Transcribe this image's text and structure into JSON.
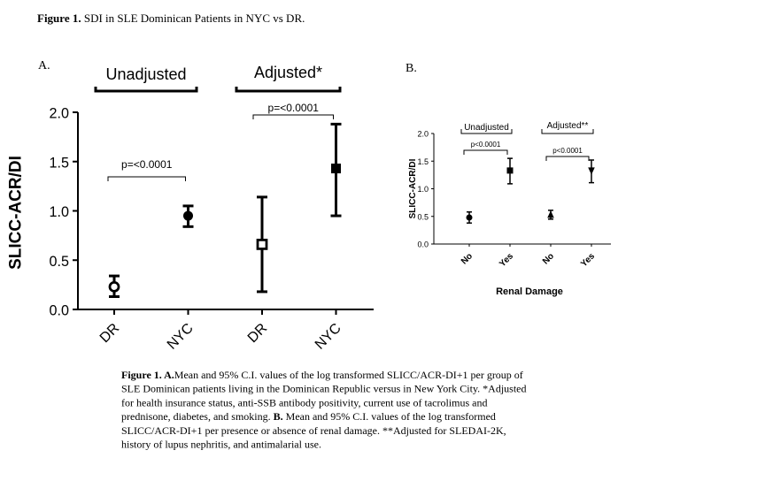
{
  "figure_title": [
    {
      "text": "Figure 1.",
      "bold": true
    },
    {
      "text": " SDI in SLE Dominican Patients in NYC vs DR.",
      "bold": false
    }
  ],
  "chart_data": [
    {
      "type": "errorbar",
      "panel_label": "A.",
      "ylabel": "SLICC-ACR/DI",
      "categories": [
        "DR",
        "NYC",
        "DR",
        "NYC"
      ],
      "values": [
        0.23,
        0.95,
        0.66,
        1.43
      ],
      "ci_low": [
        0.13,
        0.84,
        0.18,
        0.95
      ],
      "ci_high": [
        0.34,
        1.05,
        1.14,
        1.88
      ],
      "markers": [
        "open-circle",
        "filled-circle",
        "open-square",
        "filled-square"
      ],
      "color": "#000000",
      "groups": [
        {
          "label": "Unadjusted",
          "annotation": "p=<0.0001"
        },
        {
          "label": "Adjusted*",
          "annotation": "p=<0.0001"
        }
      ],
      "ylim": [
        0,
        2
      ],
      "yticks": [
        {
          "value": 0,
          "label": "0.0"
        },
        {
          "value": 0.5,
          "label": "0.5"
        },
        {
          "value": 1,
          "label": "1.0"
        },
        {
          "value": 1.5,
          "label": "1.5"
        },
        {
          "value": 2,
          "label": "2.0"
        }
      ]
    },
    {
      "type": "errorbar",
      "panel_label": "B.",
      "ylabel": "SLICC-ACR/DI",
      "xlabel": "Renal Damage",
      "categories": [
        "No",
        "Yes",
        "No",
        "Yes"
      ],
      "values": [
        0.48,
        1.33,
        0.53,
        1.33
      ],
      "ci_low": [
        0.38,
        1.09,
        0.45,
        1.11
      ],
      "ci_high": [
        0.58,
        1.55,
        0.61,
        1.52
      ],
      "markers": [
        "filled-circle",
        "filled-square",
        "filled-triangle-up",
        "filled-triangle-down"
      ],
      "color": "#000000",
      "groups": [
        {
          "label": "Unadjusted",
          "annotation": "p<0.0001"
        },
        {
          "label": "Adjusted**",
          "annotation": "p<0.0001"
        }
      ],
      "ylim": [
        0,
        2
      ],
      "yticks": [
        {
          "value": 0,
          "label": "0.0"
        },
        {
          "value": 0.5,
          "label": "0.5"
        },
        {
          "value": 1,
          "label": "1.0"
        },
        {
          "value": 1.5,
          "label": "1.5"
        },
        {
          "value": 2,
          "label": "2.0"
        }
      ]
    }
  ],
  "caption": [
    [
      {
        "text": "Figure 1. A.",
        "bold": true
      },
      {
        "text": "Mean and 95% C.I. values of the log transformed SLICC/ACR-DI+1 per group of",
        "bold": false
      }
    ],
    [
      {
        "text": "SLE Dominican patients living in the Dominican Republic versus in New York City. *Adjusted",
        "bold": false
      }
    ],
    [
      {
        "text": "for health insurance status, anti-SSB antibody positivity, current use of tacrolimus and",
        "bold": false
      }
    ],
    [
      {
        "text": "prednisone, diabetes, and smoking. ",
        "bold": false
      },
      {
        "text": "B.",
        "bold": true
      },
      {
        "text": " Mean and 95% C.I. values of the log transformed",
        "bold": false
      }
    ],
    [
      {
        "text": "SLICC/ACR-DI+1 per presence or absence of renal damage. **Adjusted for SLEDAI-2K,",
        "bold": false
      }
    ],
    [
      {
        "text": "history of lupus nephritis, and antimalarial use.",
        "bold": false
      }
    ]
  ]
}
